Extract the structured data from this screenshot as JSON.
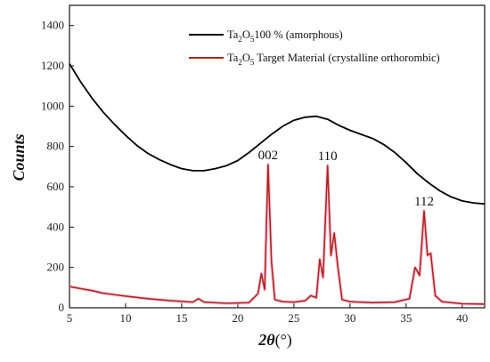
{
  "chart_data": {
    "type": "line",
    "title": "",
    "xlabel_symbol": "2θ",
    "xlabel_unit": "(°)",
    "ylabel": "Counts",
    "xlim": [
      5,
      42
    ],
    "ylim": [
      0,
      1500
    ],
    "xticks": [
      5,
      10,
      15,
      20,
      25,
      30,
      35,
      40
    ],
    "yticks": [
      0,
      200,
      400,
      600,
      800,
      1000,
      1200,
      1400
    ],
    "legend_position": "top-right",
    "grid": false,
    "series": [
      {
        "name": "Ta2O5 100 % (amorphous)",
        "name_parts": {
          "a": "Ta",
          "b": "2",
          "c": "O",
          "d": "5",
          "e": "100 % (amorphous)"
        },
        "color": "#000000",
        "x": [
          5,
          6,
          7,
          8,
          9,
          10,
          11,
          12,
          13,
          14,
          15,
          16,
          17,
          18,
          19,
          20,
          21,
          22,
          23,
          24,
          25,
          26,
          27,
          28,
          29,
          30,
          31,
          32,
          33,
          34,
          35,
          36,
          37,
          38,
          39,
          40,
          41,
          42
        ],
        "y": [
          1210,
          1120,
          1040,
          970,
          910,
          855,
          805,
          765,
          735,
          710,
          690,
          680,
          680,
          690,
          705,
          730,
          770,
          815,
          860,
          900,
          930,
          945,
          950,
          935,
          905,
          880,
          860,
          840,
          810,
          770,
          720,
          665,
          620,
          580,
          550,
          530,
          520,
          515
        ]
      },
      {
        "name": "Ta2O5 Target Material (crystalline orthorombic)",
        "name_parts": {
          "a": "Ta",
          "b": "2",
          "c": "O",
          "d": "5",
          "e": " Target Material (crystalline orthorombic)"
        },
        "color": "#b22418",
        "x": [
          5,
          6,
          7,
          8,
          10,
          12,
          14,
          16,
          16.5,
          17,
          19,
          21,
          21.8,
          22.1,
          22.4,
          22.7,
          23.0,
          23.3,
          24,
          25,
          26,
          26.5,
          27,
          27.3,
          27.6,
          28.0,
          28.3,
          28.6,
          28.9,
          29.3,
          30,
          32,
          34,
          35.3,
          35.8,
          36.2,
          36.6,
          36.9,
          37.2,
          37.6,
          38.2,
          40,
          42
        ],
        "y": [
          105,
          95,
          85,
          72,
          58,
          45,
          35,
          28,
          45,
          28,
          22,
          25,
          70,
          170,
          90,
          710,
          230,
          40,
          30,
          28,
          35,
          60,
          50,
          240,
          150,
          705,
          260,
          370,
          210,
          40,
          30,
          25,
          28,
          45,
          200,
          160,
          480,
          260,
          270,
          60,
          30,
          20,
          18
        ]
      }
    ],
    "annotations": [
      {
        "text": "002",
        "x": 22.7,
        "y": 710
      },
      {
        "text": "110",
        "x": 28.0,
        "y": 705
      },
      {
        "text": "112",
        "x": 36.6,
        "y": 480
      }
    ]
  }
}
